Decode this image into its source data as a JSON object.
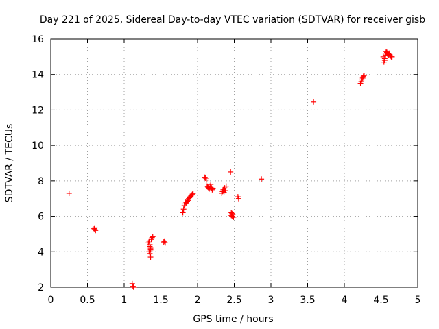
{
  "chart_data": {
    "type": "scatter",
    "title": "Day 221 of 2025, Sidereal Day-to-day VTEC variation (SDTVAR) for receiver gisb",
    "xlabel": "GPS time / hours",
    "ylabel": "SDTVAR / TECUs",
    "xlim": [
      0,
      5
    ],
    "ylim": [
      2,
      16
    ],
    "xticks": [
      0,
      0.5,
      1,
      1.5,
      2,
      2.5,
      3,
      3.5,
      4,
      4.5,
      5
    ],
    "xtick_labels": [
      "0",
      "0.5",
      "1",
      "1.5",
      "2",
      "2.5",
      "3",
      "3.5",
      "4",
      "4.5",
      "5"
    ],
    "yticks": [
      2,
      4,
      6,
      8,
      10,
      12,
      14,
      16
    ],
    "ytick_labels": [
      "2",
      "4",
      "6",
      "8",
      "10",
      "12",
      "14",
      "16"
    ],
    "grid": true,
    "marker": "+",
    "color": "#ff0000",
    "series": [
      {
        "name": "SDTVAR",
        "x": [
          0.25,
          0.59,
          0.6,
          0.61,
          0.6,
          1.11,
          1.12,
          1.13,
          1.33,
          1.34,
          1.35,
          1.36,
          1.34,
          1.35,
          1.36,
          1.37,
          1.38,
          1.39,
          1.35,
          1.36,
          1.54,
          1.55,
          1.56,
          1.8,
          1.81,
          1.82,
          1.83,
          1.84,
          1.85,
          1.86,
          1.87,
          1.88,
          1.89,
          1.9,
          1.91,
          1.92,
          1.93,
          1.94,
          2.1,
          2.11,
          2.12,
          2.13,
          2.14,
          2.15,
          2.16,
          2.17,
          2.18,
          2.19,
          2.2,
          2.21,
          2.33,
          2.34,
          2.35,
          2.36,
          2.37,
          2.38,
          2.39,
          2.45,
          2.46,
          2.47,
          2.48,
          2.49,
          2.46,
          2.47,
          2.55,
          2.56,
          2.87,
          3.58,
          4.22,
          4.23,
          4.24,
          4.25,
          4.26,
          4.27,
          4.53,
          4.54,
          4.55,
          4.56,
          4.57,
          4.58,
          4.59,
          4.6,
          4.61,
          4.62,
          4.63,
          4.64,
          4.65,
          4.55,
          4.56
        ],
        "y": [
          7.3,
          5.3,
          5.35,
          5.2,
          5.25,
          2.2,
          2.05,
          2.0,
          4.5,
          4.6,
          4.4,
          4.2,
          4.0,
          3.9,
          3.7,
          4.7,
          4.8,
          4.85,
          4.3,
          4.1,
          4.55,
          4.6,
          4.5,
          6.2,
          6.4,
          6.6,
          6.7,
          6.8,
          6.75,
          6.85,
          6.9,
          7.0,
          7.05,
          7.1,
          7.15,
          7.2,
          7.25,
          7.3,
          8.2,
          8.15,
          8.05,
          7.7,
          7.65,
          7.6,
          7.55,
          7.7,
          7.8,
          7.6,
          7.5,
          7.55,
          7.3,
          7.4,
          7.5,
          7.35,
          7.6,
          7.45,
          7.7,
          8.5,
          6.2,
          6.0,
          6.1,
          5.95,
          6.05,
          6.15,
          7.1,
          7.0,
          8.1,
          12.45,
          13.5,
          13.6,
          13.7,
          13.8,
          13.9,
          13.95,
          15.0,
          14.7,
          14.8,
          15.2,
          15.3,
          15.25,
          15.15,
          15.1,
          15.2,
          15.1,
          15.05,
          15.0,
          15.0,
          14.9,
          15.1
        ]
      }
    ]
  }
}
